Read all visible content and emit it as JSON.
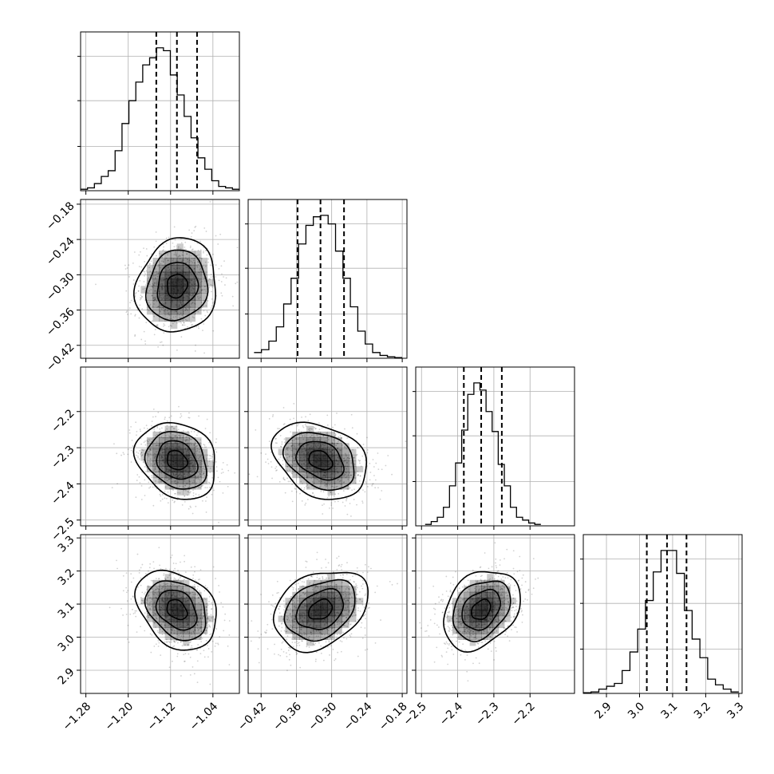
{
  "chart_data": {
    "type": "corner",
    "parameters": [
      {
        "ticks": [
          -1.28,
          -1.2,
          -1.12,
          -1.04
        ],
        "labels": [
          "−1.28",
          "−1.20",
          "−1.12",
          "−1.04"
        ],
        "range": [
          -1.29,
          -0.99
        ]
      },
      {
        "ticks": [
          -0.42,
          -0.36,
          -0.3,
          -0.24,
          -0.18
        ],
        "labels": [
          "−0.42",
          "−0.36",
          "−0.30",
          "−0.24",
          "−0.18"
        ],
        "range": [
          -0.442,
          -0.172
        ]
      },
      {
        "ticks": [
          -2.5,
          -2.4,
          -2.3,
          -2.2
        ],
        "labels": [
          "−2.5",
          "−2.4",
          "−2.3",
          "−2.2"
        ],
        "range": [
          -2.516,
          -2.077
        ]
      },
      {
        "ticks": [
          2.9,
          3.0,
          3.1,
          3.2,
          3.3
        ],
        "labels": [
          "2.9",
          "3.0",
          "3.1",
          "3.2",
          "3.3"
        ],
        "range": [
          2.83,
          3.31
        ]
      }
    ],
    "quantiles": [
      [
        -1.147,
        -1.108,
        -1.07
      ],
      [
        -0.358,
        -0.319,
        -0.279
      ],
      [
        -2.383,
        -2.335,
        -2.278
      ],
      [
        3.022,
        3.083,
        3.142
      ]
    ],
    "histograms": [
      {
        "edges": [
          -1.29,
          -0.99
        ],
        "counts": [
          0.01,
          0.02,
          0.05,
          0.1,
          0.14,
          0.28,
          0.47,
          0.63,
          0.76,
          0.88,
          0.93,
          1.0,
          0.98,
          0.81,
          0.67,
          0.52,
          0.37,
          0.23,
          0.15,
          0.07,
          0.03,
          0.02,
          0.01
        ]
      },
      {
        "edges": [
          -0.432,
          -0.18
        ],
        "counts": [
          0.04,
          0.06,
          0.12,
          0.22,
          0.38,
          0.56,
          0.8,
          0.93,
          0.99,
          1.0,
          0.94,
          0.75,
          0.56,
          0.36,
          0.19,
          0.1,
          0.04,
          0.02,
          0.01,
          0.005
        ]
      },
      {
        "edges": [
          -2.49,
          -2.17
        ],
        "counts": [
          0.01,
          0.03,
          0.06,
          0.13,
          0.28,
          0.44,
          0.67,
          0.92,
          1.0,
          0.95,
          0.8,
          0.66,
          0.43,
          0.28,
          0.13,
          0.06,
          0.04,
          0.02,
          0.01
        ]
      },
      {
        "edges": [
          2.83,
          3.3
        ],
        "counts": [
          0.005,
          0.01,
          0.03,
          0.05,
          0.07,
          0.16,
          0.29,
          0.45,
          0.65,
          0.85,
          1.0,
          1.0,
          0.84,
          0.58,
          0.38,
          0.25,
          0.1,
          0.06,
          0.03,
          0.01
        ]
      }
    ],
    "correlations": [
      [
        1.0,
        0.1,
        -0.2,
        -0.3
      ],
      [
        0.1,
        1.0,
        -0.3,
        0.3
      ],
      [
        -0.2,
        -0.3,
        1.0,
        0.3
      ],
      [
        -0.3,
        0.3,
        0.3,
        1.0
      ]
    ],
    "sigmas": [
      0.038,
      0.04,
      0.053,
      0.06
    ],
    "grid": true,
    "colors": {
      "line": "#000000",
      "grid": "#b0b0b0",
      "scatter": "#000000",
      "density": "#000000"
    }
  }
}
